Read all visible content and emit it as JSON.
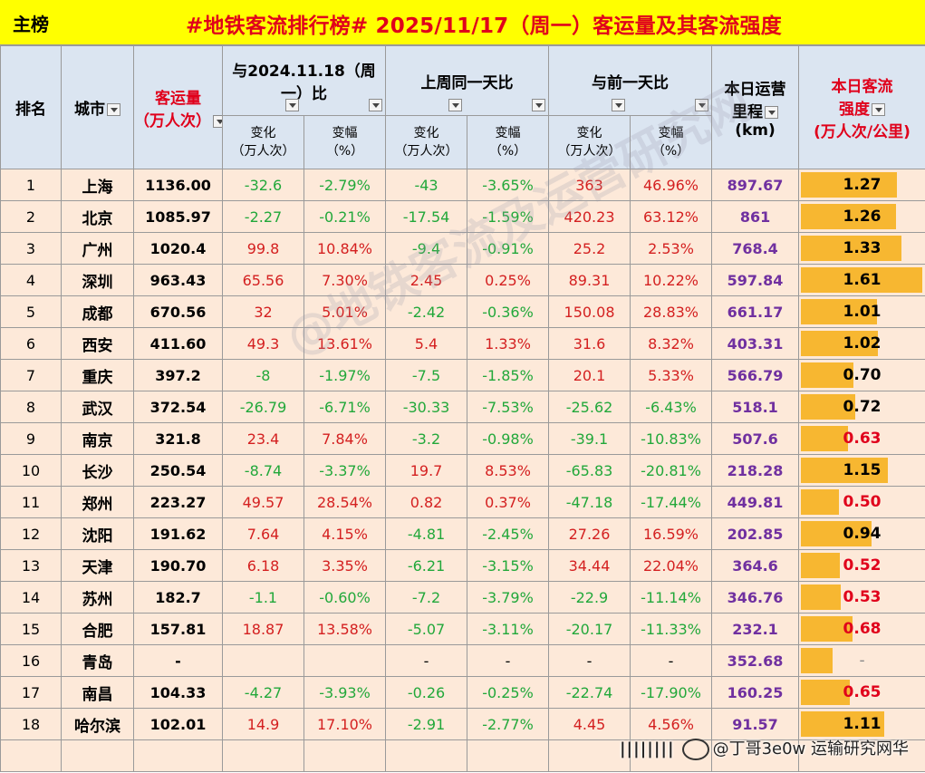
{
  "title_bar": {
    "tab_label": "主榜",
    "title": "#地铁客流排行榜# 2025/11/17（周一）客运量及其客流强度"
  },
  "headers": {
    "rank": "排名",
    "city": "城市",
    "volume_line1": "客运量",
    "volume_line2": "（万人次）",
    "yoy_line1": "与2024.11.18（周",
    "yoy_line2": "一）比",
    "wow": "上周同一天比",
    "dod": "与前一天比",
    "mileage_line1": "本日运营",
    "mileage_line2": "里程",
    "mileage_line3": "(km)",
    "intensity_line1": "本日客流",
    "intensity_line2": "强度",
    "intensity_line3": "(万人次/公里)",
    "change_line1": "变化",
    "change_line2": "（万人次）",
    "pct_line1": "变幅",
    "pct_line2": "（%）"
  },
  "rows": [
    {
      "rank": "1",
      "city": "上海",
      "volume": "1136.00",
      "yoy_c": "-32.6",
      "yoy_p": "-2.79%",
      "wow_c": "-43",
      "wow_p": "-3.65%",
      "dod_c": "363",
      "dod_p": "46.96%",
      "mileage": "897.67",
      "intensity": "1.27",
      "intensity_num": 1.27
    },
    {
      "rank": "2",
      "city": "北京",
      "volume": "1085.97",
      "yoy_c": "-2.27",
      "yoy_p": "-0.21%",
      "wow_c": "-17.54",
      "wow_p": "-1.59%",
      "dod_c": "420.23",
      "dod_p": "63.12%",
      "mileage": "861",
      "intensity": "1.26",
      "intensity_num": 1.26
    },
    {
      "rank": "3",
      "city": "广州",
      "volume": "1020.4",
      "yoy_c": "99.8",
      "yoy_p": "10.84%",
      "wow_c": "-9.4",
      "wow_p": "-0.91%",
      "dod_c": "25.2",
      "dod_p": "2.53%",
      "mileage": "768.4",
      "intensity": "1.33",
      "intensity_num": 1.33
    },
    {
      "rank": "4",
      "city": "深圳",
      "volume": "963.43",
      "yoy_c": "65.56",
      "yoy_p": "7.30%",
      "wow_c": "2.45",
      "wow_p": "0.25%",
      "dod_c": "89.31",
      "dod_p": "10.22%",
      "mileage": "597.84",
      "intensity": "1.61",
      "intensity_num": 1.61
    },
    {
      "rank": "5",
      "city": "成都",
      "volume": "670.56",
      "yoy_c": "32",
      "yoy_p": "5.01%",
      "wow_c": "-2.42",
      "wow_p": "-0.36%",
      "dod_c": "150.08",
      "dod_p": "28.83%",
      "mileage": "661.17",
      "intensity": "1.01",
      "intensity_num": 1.01
    },
    {
      "rank": "6",
      "city": "西安",
      "volume": "411.60",
      "yoy_c": "49.3",
      "yoy_p": "13.61%",
      "wow_c": "5.4",
      "wow_p": "1.33%",
      "dod_c": "31.6",
      "dod_p": "8.32%",
      "mileage": "403.31",
      "intensity": "1.02",
      "intensity_num": 1.02
    },
    {
      "rank": "7",
      "city": "重庆",
      "volume": "397.2",
      "yoy_c": "-8",
      "yoy_p": "-1.97%",
      "wow_c": "-7.5",
      "wow_p": "-1.85%",
      "dod_c": "20.1",
      "dod_p": "5.33%",
      "mileage": "566.79",
      "intensity": "0.70",
      "intensity_num": 0.7
    },
    {
      "rank": "8",
      "city": "武汉",
      "volume": "372.54",
      "yoy_c": "-26.79",
      "yoy_p": "-6.71%",
      "wow_c": "-30.33",
      "wow_p": "-7.53%",
      "dod_c": "-25.62",
      "dod_p": "-6.43%",
      "mileage": "518.1",
      "intensity": "0.72",
      "intensity_num": 0.72
    },
    {
      "rank": "9",
      "city": "南京",
      "volume": "321.8",
      "yoy_c": "23.4",
      "yoy_p": "7.84%",
      "wow_c": "-3.2",
      "wow_p": "-0.98%",
      "dod_c": "-39.1",
      "dod_p": "-10.83%",
      "mileage": "507.6",
      "intensity": "0.63",
      "intensity_num": 0.63
    },
    {
      "rank": "10",
      "city": "长沙",
      "volume": "250.54",
      "yoy_c": "-8.74",
      "yoy_p": "-3.37%",
      "wow_c": "19.7",
      "wow_p": "8.53%",
      "dod_c": "-65.83",
      "dod_p": "-20.81%",
      "mileage": "218.28",
      "intensity": "1.15",
      "intensity_num": 1.15
    },
    {
      "rank": "11",
      "city": "郑州",
      "volume": "223.27",
      "yoy_c": "49.57",
      "yoy_p": "28.54%",
      "wow_c": "0.82",
      "wow_p": "0.37%",
      "dod_c": "-47.18",
      "dod_p": "-17.44%",
      "mileage": "449.81",
      "intensity": "0.50",
      "intensity_num": 0.5
    },
    {
      "rank": "12",
      "city": "沈阳",
      "volume": "191.62",
      "yoy_c": "7.64",
      "yoy_p": "4.15%",
      "wow_c": "-4.81",
      "wow_p": "-2.45%",
      "dod_c": "27.26",
      "dod_p": "16.59%",
      "mileage": "202.85",
      "intensity": "0.94",
      "intensity_num": 0.94
    },
    {
      "rank": "13",
      "city": "天津",
      "volume": "190.70",
      "yoy_c": "6.18",
      "yoy_p": "3.35%",
      "wow_c": "-6.21",
      "wow_p": "-3.15%",
      "dod_c": "34.44",
      "dod_p": "22.04%",
      "mileage": "364.6",
      "intensity": "0.52",
      "intensity_num": 0.52
    },
    {
      "rank": "14",
      "city": "苏州",
      "volume": "182.7",
      "yoy_c": "-1.1",
      "yoy_p": "-0.60%",
      "wow_c": "-7.2",
      "wow_p": "-3.79%",
      "dod_c": "-22.9",
      "dod_p": "-11.14%",
      "mileage": "346.76",
      "intensity": "0.53",
      "intensity_num": 0.53
    },
    {
      "rank": "15",
      "city": "合肥",
      "volume": "157.81",
      "yoy_c": "18.87",
      "yoy_p": "13.58%",
      "wow_c": "-5.07",
      "wow_p": "-3.11%",
      "dod_c": "-20.17",
      "dod_p": "-11.33%",
      "mileage": "232.1",
      "intensity": "0.68",
      "intensity_num": 0.68
    },
    {
      "rank": "16",
      "city": "青岛",
      "volume": "-",
      "yoy_c": "",
      "yoy_p": "",
      "wow_c": "-",
      "wow_p": "-",
      "dod_c": "-",
      "dod_p": "-",
      "mileage": "352.68",
      "intensity": "-",
      "intensity_num": 0.42
    },
    {
      "rank": "17",
      "city": "南昌",
      "volume": "104.33",
      "yoy_c": "-4.27",
      "yoy_p": "-3.93%",
      "wow_c": "-0.26",
      "wow_p": "-0.25%",
      "dod_c": "-22.74",
      "dod_p": "-17.90%",
      "mileage": "160.25",
      "intensity": "0.65",
      "intensity_num": 0.65
    },
    {
      "rank": "18",
      "city": "哈尔滨",
      "volume": "102.01",
      "yoy_c": "14.9",
      "yoy_p": "17.10%",
      "wow_c": "-2.91",
      "wow_p": "-2.77%",
      "dod_c": "4.45",
      "dod_p": "4.56%",
      "mileage": "91.57",
      "intensity": "1.11",
      "intensity_num": 1.11
    }
  ],
  "intensity_scale_max": 1.61,
  "watermark": "@地铁客流及运营研究网",
  "signature": "@丁哥3e0w 运输研究网华",
  "colors": {
    "title_bg": "#ffff00",
    "title_red": "#e0001b",
    "header_bg": "#dbe5f1",
    "row_bg": "#fde9d9",
    "positive_red": "#d42020",
    "negative_green": "#22a83a",
    "mileage_purple": "#7030a0",
    "intensity_bar": "#f7b731"
  }
}
